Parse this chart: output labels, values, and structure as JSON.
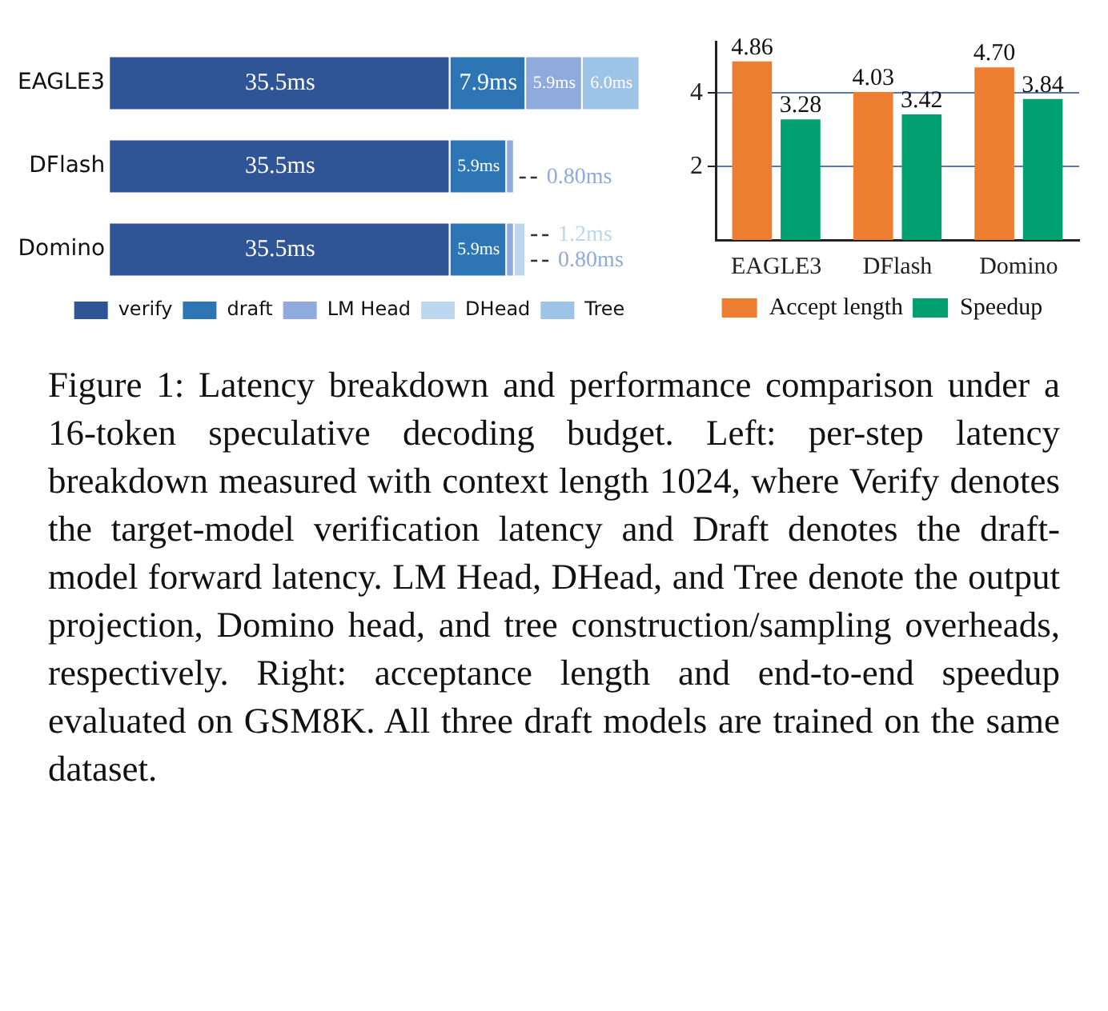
{
  "chart_data": [
    {
      "type": "bar",
      "orientation": "horizontal",
      "stacked": true,
      "categories": [
        "EAGLE3",
        "DFlash",
        "Domino"
      ],
      "legend": "bottom",
      "grid": false,
      "tick_labels": "y",
      "series": [
        {
          "name": "verify",
          "color": "#2f5597",
          "values": [
            35.5,
            35.5,
            35.5
          ],
          "value_labels": [
            "35.5ms",
            "35.5ms",
            "35.5ms"
          ]
        },
        {
          "name": "draft",
          "color": "#2e75b6",
          "values": [
            7.9,
            5.9,
            5.9
          ],
          "value_labels": [
            "7.9ms",
            "5.9ms",
            "5.9ms"
          ]
        },
        {
          "name": "LM Head",
          "color": "#8faadc",
          "values": [
            5.9,
            0.8,
            0.8
          ],
          "value_labels": [
            "5.9ms",
            "0.80ms",
            "0.80ms"
          ]
        },
        {
          "name": "DHead",
          "color": "#bdd7ee",
          "values": [
            null,
            null,
            1.2
          ],
          "value_labels": [
            null,
            null,
            "1.2ms"
          ]
        },
        {
          "name": "Tree",
          "color": "#9dc3e6",
          "values": [
            6.0,
            null,
            null
          ],
          "value_labels": [
            "6.0ms",
            null,
            null
          ]
        }
      ],
      "annotations": [
        "Figure 1: Latency breakdown and performance comparison under a 16-token speculative decoding budget. Left: per-step latency breakdown measured with context length 1024, where Verify denotes the target-model verification latency and Draft denotes the draft-model forward latency. LM Head, DHead, and Tree denote the output projection, Domino head, and tree construction/sampling overheads, respectively. Right: acceptance length and end-to-end speedup evaluated on GSM8K. All three draft models are trained on the same dataset."
      ]
    },
    {
      "type": "bar",
      "categories": [
        "EAGLE3",
        "DFlash",
        "Domino"
      ],
      "ylim": [
        0,
        5.4
      ],
      "yticks": [
        2,
        4
      ],
      "grid": "y",
      "legend": "bottom",
      "series": [
        {
          "name": "Accept length",
          "color": "#ed7d31",
          "values": [
            4.86,
            4.03,
            4.7
          ],
          "value_labels": [
            "4.86",
            "4.03",
            "4.70"
          ]
        },
        {
          "name": "Speedup",
          "color": "#00a070",
          "values": [
            3.28,
            3.42,
            3.84
          ],
          "value_labels": [
            "3.28",
            "3.42",
            "3.84"
          ]
        }
      ]
    }
  ]
}
